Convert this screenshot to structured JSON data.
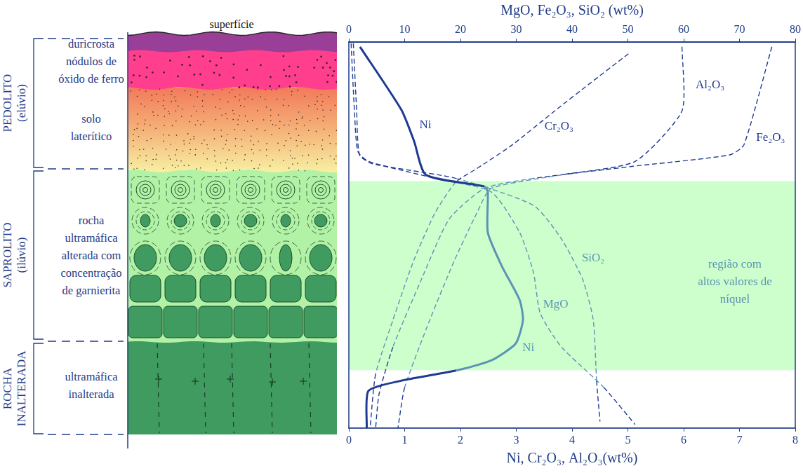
{
  "chart_data": {
    "type": "line",
    "x_label": "Ni, Cr₂O₃, Al₂O₃(wt%)",
    "x2_label": "MgO, Fe₂O₃, SiO₂ (wt%)",
    "xlim": [
      0,
      8
    ],
    "xticks": [
      0,
      1,
      2,
      3,
      4,
      5,
      6,
      7,
      8
    ],
    "x2lim": [
      0,
      80
    ],
    "x2ticks": [
      0,
      10,
      20,
      30,
      40,
      50,
      60,
      70,
      80
    ],
    "ylim": [
      100,
      0
    ],
    "tick_labels": "x",
    "grid": false,
    "region": {
      "label": [
        "região com",
        "altos valores de",
        "níquel"
      ],
      "ylim": [
        36,
        85
      ],
      "color": "#ccffcc"
    },
    "series": [
      {
        "name": "Ni",
        "axis": "x",
        "color": "#1f3a93",
        "line_style": "solid",
        "x": [
          0.2,
          0.94,
          1.17,
          1.38,
          2.43,
          2.49,
          2.49,
          2.74,
          3.06,
          3.12,
          2.99,
          2.55,
          1.92,
          0.92,
          0.35,
          0.32
        ],
        "y": [
          1.2,
          17.5,
          25.7,
          34.4,
          37.4,
          38.8,
          49.3,
          58.0,
          66.8,
          72.0,
          78.1,
          82.5,
          85.1,
          87.8,
          90.4,
          100
        ]
      },
      {
        "name": "Cr₂O₃",
        "axis": "x",
        "color": "#1f3a93",
        "line_style": "dashed",
        "x": [
          5.01,
          4.31,
          3.69,
          2.93,
          2.3,
          1.92,
          1.55,
          1.17,
          0.79,
          0.48,
          0.38
        ],
        "y": [
          3.0,
          10.8,
          17.8,
          26.6,
          32.7,
          36.2,
          44.1,
          56.3,
          72.0,
          86.0,
          100
        ]
      },
      {
        "name": "Al₂O₃",
        "axis": "x",
        "color": "#1f3a93",
        "line_style": "dashed",
        "x": [
          5.97,
          5.97,
          5.13,
          3.81,
          2.55,
          2.3,
          1.9,
          1.45,
          1.0,
          0.88
        ],
        "y": [
          1.2,
          17.8,
          30.9,
          34.4,
          37.9,
          44.1,
          56.3,
          72.0,
          89.5,
          100
        ]
      },
      {
        "name": "Fe₂O₃",
        "axis": "x2",
        "color": "#1f3a93",
        "line_style": "dashed",
        "x": [
          75.8,
          70.8,
          68.3,
          50.7,
          33.1,
          24.3,
          18.0,
          13.0,
          7.9,
          5.4,
          4.8
        ],
        "y": [
          1.2,
          26.6,
          29.2,
          32.2,
          35.3,
          37.9,
          45.8,
          61.5,
          79.0,
          91.3,
          100
        ]
      },
      {
        "name": "SiO₂",
        "axis": "x2",
        "color": "#1f3a93",
        "line_style": "dashed",
        "x": [
          0.8,
          1.4,
          1.9,
          4.2,
          19.2,
          33.1,
          38.1,
          41.9,
          43.8,
          44.4,
          45.0
        ],
        "y": [
          0.3,
          17.8,
          29.2,
          31.5,
          35.3,
          42.3,
          51.0,
          61.5,
          72.0,
          87.8,
          98.3
        ]
      },
      {
        "name": "MgO",
        "axis": "x2",
        "color": "#1f3a93",
        "line_style": "dashed",
        "x": [
          0.4,
          1.0,
          1.6,
          3.5,
          15.5,
          25.5,
          30.6,
          33.1,
          34.3,
          38.1,
          45.7,
          51.3
        ],
        "y": [
          0.3,
          17.8,
          28.3,
          30.9,
          35.3,
          38.8,
          49.3,
          59.8,
          70.3,
          79.0,
          89.5,
          99.1
        ]
      }
    ]
  },
  "diagram": {
    "surface": "superfície",
    "zones": [
      {
        "name": [
          "PEDOLITO"
        ],
        "subtitle": "(elúvio)",
        "layers": [
          [
            "duricrosta"
          ],
          [
            "nódulos de",
            "óxido de ferro"
          ],
          [
            "solo",
            "laterítico"
          ]
        ]
      },
      {
        "name": [
          "SAPROLITO"
        ],
        "subtitle": "(ilúvio)",
        "layers": [
          [
            "rocha",
            "ultramáfica",
            "alterada com",
            "concentração",
            "de garnierita"
          ]
        ]
      },
      {
        "name": [
          "ROCHA",
          "INALTERADA"
        ],
        "layers": [
          [
            "ultramáfica",
            "inalterada"
          ]
        ]
      }
    ]
  }
}
